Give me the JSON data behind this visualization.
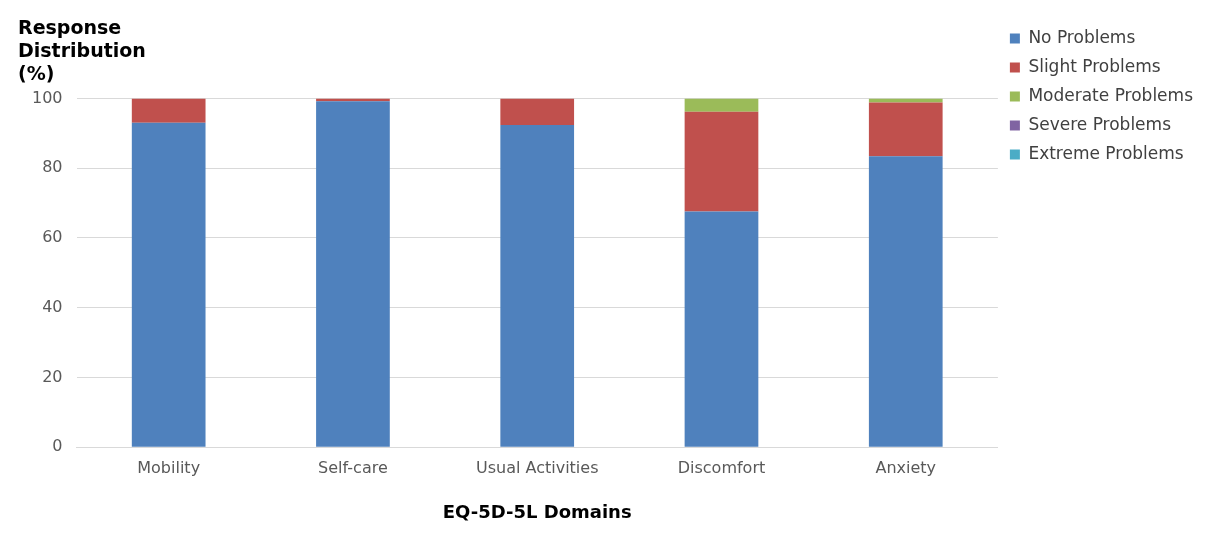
{
  "chart_data": {
    "type": "bar",
    "stacked": true,
    "ylabel": "Response Distribution (%)",
    "xlabel": "EQ-5D-5L Domains",
    "categories": [
      "Mobility",
      "Self-care",
      "Usual Activities",
      "Discomfort",
      "Anxiety"
    ],
    "series": [
      {
        "name": "No Problems",
        "color": "#4f81bd",
        "values": [
          93,
          99.2,
          92.4,
          67.6,
          83.4
        ]
      },
      {
        "name": "Slight Problems",
        "color": "#c0504d",
        "values": [
          7,
          0.8,
          7.6,
          28.6,
          15.4
        ]
      },
      {
        "name": "Moderate Problems",
        "color": "#9bbb59",
        "values": [
          0,
          0,
          0,
          3.8,
          1.2
        ]
      },
      {
        "name": "Severe Problems",
        "color": "#8064a2",
        "values": [
          0,
          0,
          0,
          0,
          0
        ]
      },
      {
        "name": "Extreme Problems",
        "color": "#4bacc6",
        "values": [
          0,
          0,
          0,
          0,
          0
        ]
      }
    ],
    "ylim": [
      0,
      100
    ],
    "yticks": [
      0,
      20,
      40,
      60,
      80,
      100
    ],
    "grid": "y",
    "legend": "right"
  }
}
